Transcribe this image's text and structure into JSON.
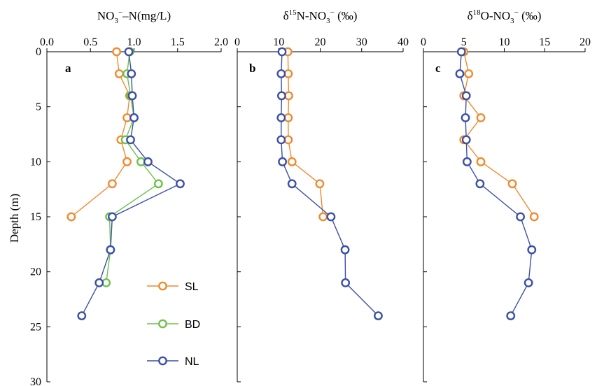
{
  "y_axis_label": "Depth (m)",
  "panels": [
    {
      "letter": "a",
      "title_parts": [
        "NO",
        "3",
        "−",
        "–N(mg/L)"
      ]
    },
    {
      "letter": "b",
      "title_parts": [
        "δ",
        "15",
        "N-NO",
        "3",
        "−",
        " (‰)"
      ]
    },
    {
      "letter": "c",
      "title_parts": [
        "δ",
        "18",
        "O-NO",
        "3",
        "−",
        " (‰)"
      ]
    }
  ],
  "colors": {
    "SL": "#f08a2e",
    "BD": "#6cc24a",
    "NL": "#3a4fa8",
    "axis": "#000000"
  },
  "legend": [
    "SL",
    "BD",
    "NL"
  ],
  "chart_data": [
    {
      "type": "line",
      "panel": "a",
      "title": "NO3−–N(mg/L)",
      "xlabel": "NO3−–N(mg/L)",
      "ylabel": "Depth (m)",
      "xlim": [
        0,
        2.0
      ],
      "ylim": [
        0,
        30
      ],
      "x_ticks": [
        "0.0",
        "0.5",
        "1.0",
        "1.5",
        "2.0"
      ],
      "y_ticks": [
        "0",
        "5",
        "10",
        "15",
        "20",
        "25",
        "30"
      ],
      "y_inverted": true,
      "series": [
        {
          "name": "SL",
          "points": [
            [
              0.8,
              0
            ],
            [
              0.83,
              2
            ],
            [
              0.95,
              4
            ],
            [
              0.92,
              6
            ],
            [
              0.85,
              8
            ],
            [
              0.92,
              10
            ],
            [
              0.75,
              12
            ],
            [
              0.28,
              15
            ]
          ]
        },
        {
          "name": "BD",
          "points": [
            [
              0.95,
              0
            ],
            [
              0.92,
              2
            ],
            [
              0.96,
              4
            ],
            [
              1.0,
              6
            ],
            [
              0.9,
              8
            ],
            [
              1.08,
              10
            ],
            [
              1.28,
              12
            ],
            [
              0.72,
              15
            ],
            [
              0.73,
              18
            ],
            [
              0.68,
              21
            ]
          ]
        },
        {
          "name": "NL",
          "points": [
            [
              0.94,
              0
            ],
            [
              0.97,
              2
            ],
            [
              0.98,
              4
            ],
            [
              1.0,
              6
            ],
            [
              0.96,
              8
            ],
            [
              1.16,
              10
            ],
            [
              1.53,
              12
            ],
            [
              0.75,
              15
            ],
            [
              0.73,
              18
            ],
            [
              0.6,
              21
            ],
            [
              0.4,
              24
            ]
          ]
        }
      ]
    },
    {
      "type": "line",
      "panel": "b",
      "title": "δ15N-NO3− (‰)",
      "xlabel": "δ15N-NO3− (‰)",
      "xlim": [
        0,
        40
      ],
      "ylim": [
        0,
        30
      ],
      "x_ticks": [
        "0",
        "10",
        "20",
        "30",
        "40"
      ],
      "y_inverted": true,
      "series": [
        {
          "name": "SL",
          "points": [
            [
              12.2,
              0
            ],
            [
              12.3,
              2
            ],
            [
              12.4,
              4
            ],
            [
              12.3,
              6
            ],
            [
              12.3,
              8
            ],
            [
              13.2,
              10
            ],
            [
              19.9,
              12
            ],
            [
              20.7,
              15
            ]
          ]
        },
        {
          "name": "NL",
          "points": [
            [
              10.8,
              0
            ],
            [
              10.6,
              2
            ],
            [
              10.7,
              4
            ],
            [
              10.6,
              6
            ],
            [
              10.6,
              8
            ],
            [
              10.9,
              10
            ],
            [
              13.2,
              12
            ],
            [
              22.6,
              15
            ],
            [
              26.0,
              18
            ],
            [
              26.1,
              21
            ],
            [
              34.0,
              24
            ]
          ]
        }
      ]
    },
    {
      "type": "line",
      "panel": "c",
      "title": "δ18O-NO3− (‰)",
      "xlabel": "δ18O-NO3− (‰)",
      "xlim": [
        0,
        20
      ],
      "ylim": [
        0,
        30
      ],
      "x_ticks": [
        "0",
        "5",
        "10",
        "15",
        "20"
      ],
      "y_inverted": true,
      "series": [
        {
          "name": "SL",
          "points": [
            [
              5.0,
              0
            ],
            [
              5.6,
              2
            ],
            [
              5.0,
              4
            ],
            [
              7.1,
              6
            ],
            [
              5.0,
              8
            ],
            [
              7.1,
              10
            ],
            [
              11.0,
              12
            ],
            [
              13.7,
              15
            ]
          ]
        },
        {
          "name": "NL",
          "points": [
            [
              4.7,
              0
            ],
            [
              4.5,
              2
            ],
            [
              5.3,
              4
            ],
            [
              5.2,
              6
            ],
            [
              5.3,
              8
            ],
            [
              5.4,
              10
            ],
            [
              7.0,
              12
            ],
            [
              12.0,
              15
            ],
            [
              13.4,
              18
            ],
            [
              13.0,
              21
            ],
            [
              10.8,
              24
            ]
          ]
        }
      ]
    }
  ]
}
